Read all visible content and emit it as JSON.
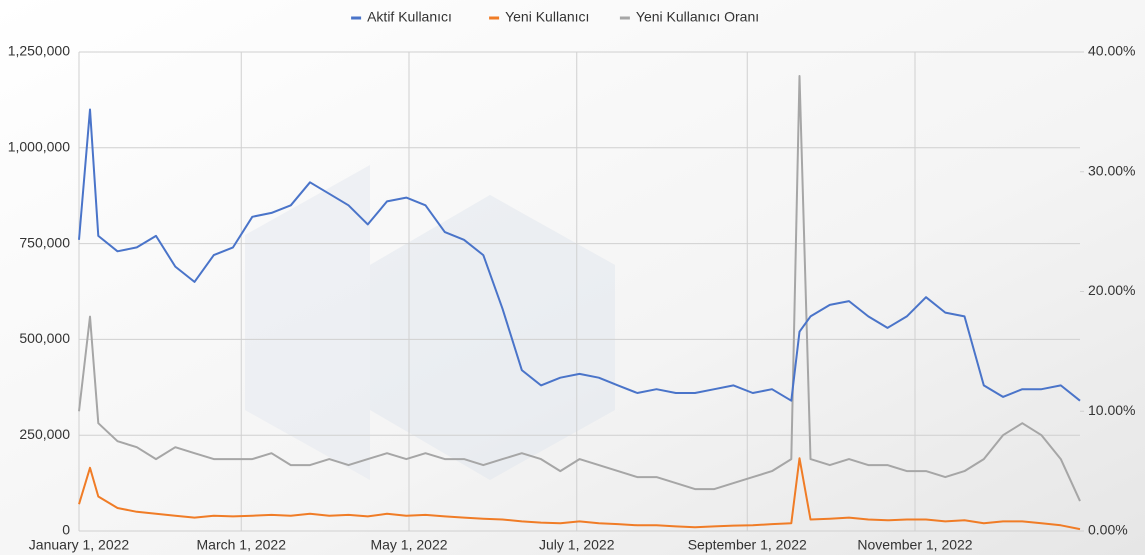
{
  "chart_data": {
    "type": "line",
    "x": [
      "2022-01-01",
      "2022-01-05",
      "2022-01-08",
      "2022-01-15",
      "2022-01-22",
      "2022-01-29",
      "2022-02-05",
      "2022-02-12",
      "2022-02-19",
      "2022-02-26",
      "2022-03-05",
      "2022-03-12",
      "2022-03-19",
      "2022-03-26",
      "2022-04-02",
      "2022-04-09",
      "2022-04-16",
      "2022-04-23",
      "2022-04-30",
      "2022-05-07",
      "2022-05-14",
      "2022-05-21",
      "2022-05-28",
      "2022-06-04",
      "2022-06-11",
      "2022-06-18",
      "2022-06-25",
      "2022-07-02",
      "2022-07-09",
      "2022-07-16",
      "2022-07-23",
      "2022-07-30",
      "2022-08-06",
      "2022-08-13",
      "2022-08-20",
      "2022-08-27",
      "2022-09-03",
      "2022-09-10",
      "2022-09-17",
      "2022-09-20",
      "2022-09-24",
      "2022-10-01",
      "2022-10-08",
      "2022-10-15",
      "2022-10-22",
      "2022-10-29",
      "2022-11-05",
      "2022-11-12",
      "2022-11-19",
      "2022-11-26",
      "2022-12-03",
      "2022-12-10",
      "2022-12-17",
      "2022-12-24",
      "2022-12-31"
    ],
    "series": [
      {
        "name": "Aktif Kullanıcı",
        "color": "#4a74c9",
        "values": [
          760000,
          1100000,
          770000,
          730000,
          740000,
          770000,
          690000,
          650000,
          720000,
          740000,
          820000,
          830000,
          850000,
          910000,
          880000,
          850000,
          800000,
          860000,
          870000,
          850000,
          780000,
          760000,
          720000,
          580000,
          420000,
          380000,
          400000,
          410000,
          400000,
          380000,
          360000,
          370000,
          360000,
          360000,
          370000,
          380000,
          360000,
          370000,
          340000,
          520000,
          560000,
          590000,
          600000,
          560000,
          530000,
          560000,
          610000,
          570000,
          560000,
          380000,
          350000,
          370000,
          370000,
          380000,
          340000
        ]
      },
      {
        "name": "Yeni Kullanıcı",
        "color": "#f07c26",
        "values": [
          70000,
          165000,
          90000,
          60000,
          50000,
          45000,
          40000,
          35000,
          40000,
          38000,
          40000,
          42000,
          40000,
          45000,
          40000,
          42000,
          38000,
          45000,
          40000,
          42000,
          38000,
          35000,
          32000,
          30000,
          25000,
          22000,
          20000,
          25000,
          20000,
          18000,
          15000,
          15000,
          12000,
          10000,
          12000,
          14000,
          15000,
          18000,
          20000,
          190000,
          30000,
          32000,
          35000,
          30000,
          28000,
          30000,
          30000,
          25000,
          28000,
          20000,
          25000,
          25000,
          20000,
          15000,
          5000
        ]
      },
      {
        "name": "Yeni Kullanıcı Oranı",
        "color": "#a6a6a6",
        "axis": "y2",
        "values": [
          10,
          17.9,
          9,
          7.5,
          7,
          6,
          7,
          6.5,
          6,
          6,
          6,
          6.5,
          5.5,
          5.5,
          6,
          5.5,
          6,
          6.5,
          6,
          6.5,
          6,
          6,
          5.5,
          6,
          6.5,
          6,
          5,
          6,
          5.5,
          5,
          4.5,
          4.5,
          4,
          3.5,
          3.5,
          4,
          4.5,
          5,
          6,
          38,
          6,
          5.5,
          6,
          5.5,
          5.5,
          5,
          5,
          4.5,
          5,
          6,
          8,
          9,
          8,
          6,
          2.5
        ]
      }
    ],
    "xlim": [
      "2022-01-01",
      "2022-12-31"
    ],
    "xticks": [
      {
        "value": "2022-01-01",
        "label": "January 1, 2022"
      },
      {
        "value": "2022-03-01",
        "label": "March 1, 2022"
      },
      {
        "value": "2022-05-01",
        "label": "May 1, 2022"
      },
      {
        "value": "2022-07-01",
        "label": "July 1, 2022"
      },
      {
        "value": "2022-09-01",
        "label": "September 1, 2022"
      },
      {
        "value": "2022-11-01",
        "label": "November 1, 2022"
      }
    ],
    "ylim": [
      0,
      1250000
    ],
    "yticks": [
      0,
      {
        "value": 250000,
        "label": "250,000"
      },
      {
        "value": 500000,
        "label": "500,000"
      },
      {
        "value": 750000,
        "label": "750,000"
      },
      {
        "value": 1000000,
        "label": "1,000,000"
      },
      {
        "value": 1250000,
        "label": "1,250,000"
      }
    ],
    "y2lim": [
      0,
      40
    ],
    "y2ticks": [
      {
        "value": 0,
        "label": "0.00%"
      },
      {
        "value": 10,
        "label": "10.00%"
      },
      {
        "value": 20,
        "label": "20.00%"
      },
      {
        "value": 30,
        "label": "30.00%"
      },
      {
        "value": 40,
        "label": "40.00%"
      }
    ],
    "grid": true,
    "legend": "top"
  }
}
